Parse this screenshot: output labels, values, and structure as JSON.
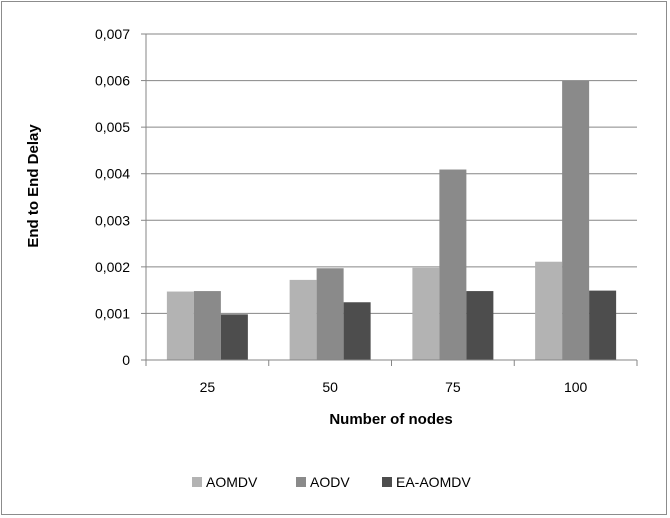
{
  "chart_data": {
    "type": "bar",
    "title": "",
    "xlabel": "Number of nodes",
    "ylabel": "End to End Delay",
    "categories": [
      "25",
      "50",
      "75",
      "100"
    ],
    "ylim": [
      0,
      0.007
    ],
    "yticks": [
      0,
      0.001,
      0.002,
      0.003,
      0.004,
      0.005,
      0.006,
      0.007
    ],
    "ytick_labels": [
      "0",
      "0,001",
      "0,002",
      "0,003",
      "0,004",
      "0,005",
      "0,006",
      "0,007"
    ],
    "grid": true,
    "legend_position": "bottom",
    "series": [
      {
        "name": "AOMDV",
        "color": "#b3b3b3",
        "values": [
          0.00147,
          0.00172,
          0.00198,
          0.00211
        ]
      },
      {
        "name": "AODV",
        "color": "#8a8a8a",
        "values": [
          0.00148,
          0.00197,
          0.00409,
          0.006
        ]
      },
      {
        "name": "EA-AOMDV",
        "color": "#4d4d4d",
        "values": [
          0.00098,
          0.00124,
          0.00148,
          0.00149
        ]
      }
    ]
  }
}
